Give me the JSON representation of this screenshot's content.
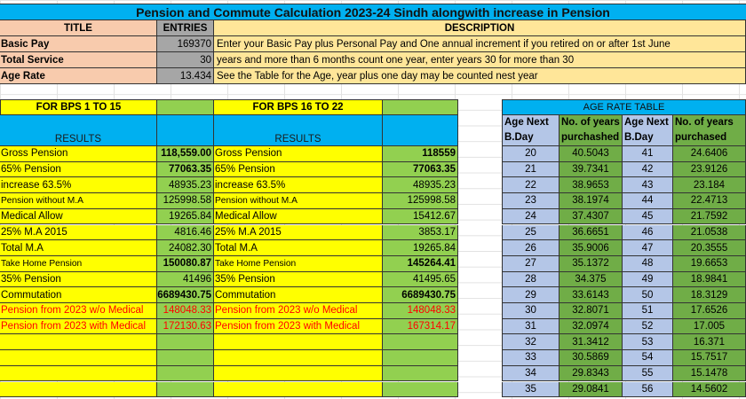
{
  "title": "Pension and Commute Calculation 2023-24 Sindh alongwith increase in Pension",
  "input_header": {
    "title": "TITLE",
    "entries": "ENTRIES",
    "description": "DESCRIPTION"
  },
  "inputs": [
    {
      "label": "Basic Pay",
      "value": "169370",
      "description": "Enter your Basic Pay plus Personal Pay and One annual increment  if you retired on or after 1st June"
    },
    {
      "label": "Total Service",
      "value": "30",
      "description": "years and more than 6 months count one year, enter  years 30 for more than 30"
    },
    {
      "label": "Age Rate",
      "value": "13.434",
      "description": "See the Table for the Age, year plus one day may be counted nest year"
    }
  ],
  "bps_low": {
    "header": "FOR BPS 1 TO 15",
    "results_label": "RESULTS",
    "rows": [
      {
        "label": "Gross Pension",
        "value": "118,559.00",
        "bold": true,
        "small": false,
        "red": false
      },
      {
        "label": "65% Pension",
        "value": "77063.35",
        "bold": true,
        "small": false,
        "red": false
      },
      {
        "label": "increase 63.5%",
        "value": "48935.23",
        "bold": false,
        "small": false,
        "red": false
      },
      {
        "label": "Pension without M.A",
        "value": "125998.58",
        "bold": false,
        "small": true,
        "red": false
      },
      {
        "label": "Medical Allow",
        "value": "19265.84",
        "bold": false,
        "small": false,
        "red": false
      },
      {
        "label": "25% M.A 2015",
        "value": "4816.46",
        "bold": false,
        "small": false,
        "red": false
      },
      {
        "label": "Total M.A",
        "value": "24082.30",
        "bold": false,
        "small": false,
        "red": false
      },
      {
        "label": "Take Home Pension",
        "value": "150080.87",
        "bold": true,
        "small": true,
        "red": false
      },
      {
        "label": "35% Pension",
        "value": "41496",
        "bold": false,
        "small": false,
        "red": false
      },
      {
        "label": "Commutation",
        "value": "6689430.75",
        "bold": true,
        "small": false,
        "red": false
      },
      {
        "label": "Pension from 2023 w/o Medical",
        "value": "148048.33",
        "bold": false,
        "small": false,
        "red": true
      },
      {
        "label": "Pension from 2023 with Medical",
        "value": "172130.63",
        "bold": false,
        "small": false,
        "red": true
      },
      {
        "label": "",
        "value": ""
      },
      {
        "label": "",
        "value": ""
      },
      {
        "label": "",
        "value": ""
      },
      {
        "label": "",
        "value": ""
      }
    ]
  },
  "bps_high": {
    "header": "FOR BPS 16 TO 22",
    "results_label": "RESULTS",
    "rows": [
      {
        "label": "Gross Pension",
        "value": "118559",
        "bold": true,
        "small": false,
        "red": false
      },
      {
        "label": "65% Pension",
        "value": "77063.35",
        "bold": true,
        "small": false,
        "red": false
      },
      {
        "label": "increase 63.5%",
        "value": "48935.23",
        "bold": false,
        "small": false,
        "red": false
      },
      {
        "label": "Pension without M.A",
        "value": "125998.58",
        "bold": false,
        "small": true,
        "red": false
      },
      {
        "label": "Medical Allow",
        "value": "15412.67",
        "bold": false,
        "small": false,
        "red": false
      },
      {
        "label": "25% M.A 2015",
        "value": "3853.17",
        "bold": false,
        "small": false,
        "red": false
      },
      {
        "label": "Total M.A",
        "value": "19265.84",
        "bold": false,
        "small": false,
        "red": false
      },
      {
        "label": "Take Home Pension",
        "value": "145264.41",
        "bold": true,
        "small": true,
        "red": false
      },
      {
        "label": "35% Pension",
        "value": "41495.65",
        "bold": false,
        "small": false,
        "red": false
      },
      {
        "label": "Commutation",
        "value": "6689430.75",
        "bold": true,
        "small": false,
        "red": false
      },
      {
        "label": "Pension from 2023 w/o Medical",
        "value": "148048.33",
        "bold": false,
        "small": false,
        "red": true
      },
      {
        "label": "Pension from 2023 with Medical",
        "value": "167314.17",
        "bold": false,
        "small": false,
        "red": true
      },
      {
        "label": "",
        "value": ""
      },
      {
        "label": "",
        "value": ""
      },
      {
        "label": "",
        "value": ""
      },
      {
        "label": "",
        "value": ""
      }
    ]
  },
  "age_table": {
    "title": "AGE RATE TABLE",
    "headers": [
      "Age Next\nB.Day",
      "No. of years\npurchashed",
      "Age Next\nB.Day",
      "No. of years\npurchased"
    ],
    "rows": [
      [
        "20",
        "40.5043",
        "41",
        "24.6406"
      ],
      [
        "21",
        "39.7341",
        "42",
        "23.9126"
      ],
      [
        "22",
        "38.9653",
        "43",
        "23.184"
      ],
      [
        "23",
        "38.1974",
        "44",
        "22.4713"
      ],
      [
        "24",
        "37.4307",
        "45",
        "21.7592"
      ],
      [
        "25",
        "36.6651",
        "46",
        "21.0538"
      ],
      [
        "26",
        "35.9006",
        "47",
        "20.3555"
      ],
      [
        "27",
        "35.1372",
        "48",
        "19.6653"
      ],
      [
        "28",
        "34.375",
        "49",
        "18.9841"
      ],
      [
        "29",
        "33.6143",
        "50",
        "18.3129"
      ],
      [
        "30",
        "32.8071",
        "51",
        "17.6526"
      ],
      [
        "31",
        "32.0974",
        "52",
        "17.005"
      ],
      [
        "32",
        "31.3412",
        "53",
        "16.371"
      ],
      [
        "33",
        "30.5869",
        "54",
        "15.7517"
      ],
      [
        "34",
        "29.8343",
        "55",
        "15.1478"
      ],
      [
        "35",
        "29.0841",
        "56",
        "14.5602"
      ]
    ]
  }
}
